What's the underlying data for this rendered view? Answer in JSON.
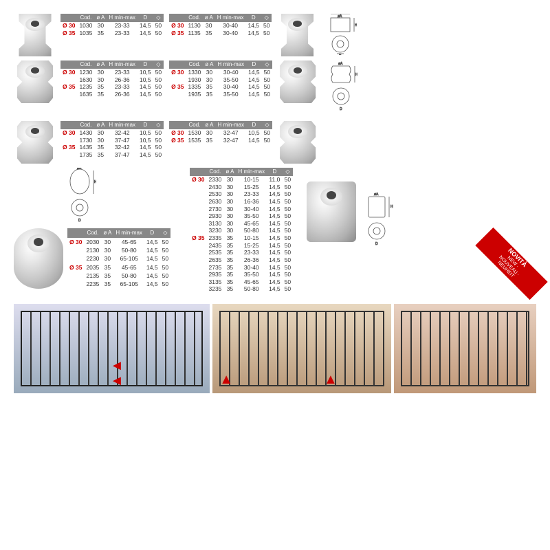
{
  "headers": {
    "cod": "Cod.",
    "dia": "ø A",
    "hmm": "H min-max",
    "d": "D",
    "pack": "◇"
  },
  "diaLabels": {
    "d30": "Ø 30",
    "d35": "Ø 35"
  },
  "novita": {
    "title": "NOVITÀ",
    "sub": "NEW · NOUVEAU · NEUHEIT"
  },
  "colors": {
    "headerBg": "#888888",
    "accent": "#cc0000"
  },
  "tables": {
    "t1": [
      {
        "dia": "d30",
        "cod": "1030",
        "a": "30",
        "h": "23-33",
        "d": "14,5",
        "p": "50"
      },
      {
        "dia": "d35",
        "cod": "1035",
        "a": "35",
        "h": "23-33",
        "d": "14,5",
        "p": "50"
      }
    ],
    "t2": [
      {
        "dia": "d30",
        "cod": "1130",
        "a": "30",
        "h": "30-40",
        "d": "14,5",
        "p": "50"
      },
      {
        "dia": "d35",
        "cod": "1135",
        "a": "35",
        "h": "30-40",
        "d": "14,5",
        "p": "50"
      }
    ],
    "t3": [
      {
        "dia": "d30",
        "cod": "1230",
        "a": "30",
        "h": "23-33",
        "d": "10,5",
        "p": "50"
      },
      {
        "dia": "",
        "cod": "1630",
        "a": "30",
        "h": "26-36",
        "d": "10,5",
        "p": "50"
      },
      {
        "dia": "d35",
        "cod": "1235",
        "a": "35",
        "h": "23-33",
        "d": "14,5",
        "p": "50"
      },
      {
        "dia": "",
        "cod": "1635",
        "a": "35",
        "h": "26-36",
        "d": "14,5",
        "p": "50"
      }
    ],
    "t4": [
      {
        "dia": "d30",
        "cod": "1330",
        "a": "30",
        "h": "30-40",
        "d": "14,5",
        "p": "50"
      },
      {
        "dia": "",
        "cod": "1930",
        "a": "30",
        "h": "35-50",
        "d": "14,5",
        "p": "50"
      },
      {
        "dia": "d35",
        "cod": "1335",
        "a": "35",
        "h": "30-40",
        "d": "14,5",
        "p": "50"
      },
      {
        "dia": "",
        "cod": "1935",
        "a": "35",
        "h": "35-50",
        "d": "14,5",
        "p": "50"
      }
    ],
    "t5": [
      {
        "dia": "d30",
        "cod": "1430",
        "a": "30",
        "h": "32-42",
        "d": "10,5",
        "p": "50"
      },
      {
        "dia": "",
        "cod": "1730",
        "a": "30",
        "h": "37-47",
        "d": "10,5",
        "p": "50"
      },
      {
        "dia": "d35",
        "cod": "1435",
        "a": "35",
        "h": "32-42",
        "d": "14,5",
        "p": "50"
      },
      {
        "dia": "",
        "cod": "1735",
        "a": "35",
        "h": "37-47",
        "d": "14,5",
        "p": "50"
      }
    ],
    "t6": [
      {
        "dia": "d30",
        "cod": "1530",
        "a": "30",
        "h": "32-47",
        "d": "10,5",
        "p": "50"
      },
      {
        "dia": "d35",
        "cod": "1535",
        "a": "35",
        "h": "32-47",
        "d": "14,5",
        "p": "50"
      }
    ],
    "t7": [
      {
        "dia": "d30",
        "cod": "2030",
        "a": "30",
        "h": "45-65",
        "d": "14,5",
        "p": "50"
      },
      {
        "dia": "",
        "cod": "2130",
        "a": "30",
        "h": "50-80",
        "d": "14,5",
        "p": "50"
      },
      {
        "dia": "",
        "cod": "2230",
        "a": "30",
        "h": "65-105",
        "d": "14,5",
        "p": "50"
      },
      {
        "dia": "d35",
        "cod": "2035",
        "a": "35",
        "h": "45-65",
        "d": "14,5",
        "p": "50"
      },
      {
        "dia": "",
        "cod": "2135",
        "a": "35",
        "h": "50-80",
        "d": "14,5",
        "p": "50"
      },
      {
        "dia": "",
        "cod": "2235",
        "a": "35",
        "h": "65-105",
        "d": "14,5",
        "p": "50"
      }
    ],
    "t8": [
      {
        "dia": "d30",
        "cod": "2330",
        "a": "30",
        "h": "10-15",
        "d": "11,0",
        "p": "50"
      },
      {
        "dia": "",
        "cod": "2430",
        "a": "30",
        "h": "15-25",
        "d": "14,5",
        "p": "50"
      },
      {
        "dia": "",
        "cod": "2530",
        "a": "30",
        "h": "23-33",
        "d": "14,5",
        "p": "50"
      },
      {
        "dia": "",
        "cod": "2630",
        "a": "30",
        "h": "16-36",
        "d": "14,5",
        "p": "50"
      },
      {
        "dia": "",
        "cod": "2730",
        "a": "30",
        "h": "30-40",
        "d": "14,5",
        "p": "50"
      },
      {
        "dia": "",
        "cod": "2930",
        "a": "30",
        "h": "35-50",
        "d": "14,5",
        "p": "50"
      },
      {
        "dia": "",
        "cod": "3130",
        "a": "30",
        "h": "45-65",
        "d": "14,5",
        "p": "50"
      },
      {
        "dia": "",
        "cod": "3230",
        "a": "30",
        "h": "50-80",
        "d": "14,5",
        "p": "50"
      },
      {
        "dia": "d35",
        "cod": "2335",
        "a": "35",
        "h": "10-15",
        "d": "14,5",
        "p": "50"
      },
      {
        "dia": "",
        "cod": "2435",
        "a": "35",
        "h": "15-25",
        "d": "14,5",
        "p": "50"
      },
      {
        "dia": "",
        "cod": "2535",
        "a": "35",
        "h": "23-33",
        "d": "14,5",
        "p": "50"
      },
      {
        "dia": "",
        "cod": "2635",
        "a": "35",
        "h": "26-36",
        "d": "14,5",
        "p": "50"
      },
      {
        "dia": "",
        "cod": "2735",
        "a": "35",
        "h": "30-40",
        "d": "14,5",
        "p": "50"
      },
      {
        "dia": "",
        "cod": "2935",
        "a": "35",
        "h": "35-50",
        "d": "14,5",
        "p": "50"
      },
      {
        "dia": "",
        "cod": "3135",
        "a": "35",
        "h": "45-65",
        "d": "14,5",
        "p": "50"
      },
      {
        "dia": "",
        "cod": "3235",
        "a": "35",
        "h": "50-80",
        "d": "14,5",
        "p": "50"
      }
    ]
  }
}
